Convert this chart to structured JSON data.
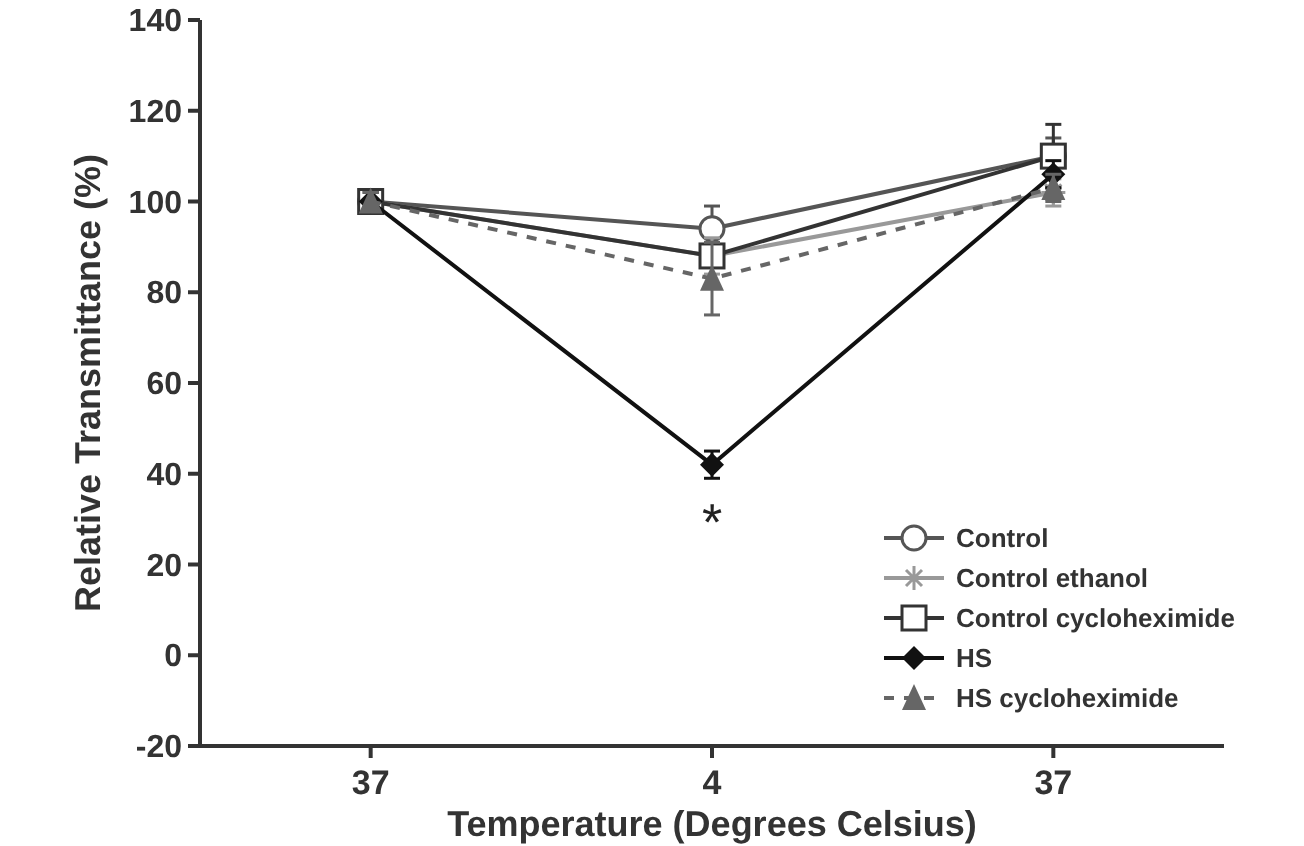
{
  "chart_data": {
    "type": "line",
    "xlabel": "Temperature (Degrees Celsius)",
    "ylabel": "Relative Transmittance (%)",
    "categories": [
      "37",
      "4",
      "37"
    ],
    "ylim": [
      -20,
      140
    ],
    "yticks": [
      -20,
      0,
      20,
      40,
      60,
      80,
      100,
      120,
      140
    ],
    "grid": false,
    "legend": "bottom right",
    "series": [
      {
        "name": "Control",
        "color": "#555555",
        "marker": "circle",
        "line_style": "solid",
        "values": [
          100,
          94,
          110
        ],
        "errors": [
          2,
          5,
          4
        ]
      },
      {
        "name": "Control ethanol",
        "color": "#999999",
        "marker": "cross",
        "line_style": "solid",
        "values": [
          100,
          88,
          102
        ],
        "errors": [
          2,
          4,
          3
        ]
      },
      {
        "name": "Control cycloheximide",
        "color": "#333333",
        "marker": "square",
        "line_style": "solid",
        "values": [
          100,
          88,
          110
        ],
        "errors": [
          2,
          null,
          7
        ]
      },
      {
        "name": "HS",
        "color": "#111111",
        "marker": "diamond",
        "line_style": "solid",
        "values": [
          100,
          42,
          106
        ],
        "errors": [
          2,
          3,
          3
        ]
      },
      {
        "name": "HS cycloheximide",
        "color": "#666666",
        "marker": "triangle",
        "line_style": "dashed",
        "values": [
          100,
          83,
          103
        ],
        "errors": [
          2,
          8,
          3
        ]
      }
    ],
    "annotations": [
      "*"
    ]
  }
}
